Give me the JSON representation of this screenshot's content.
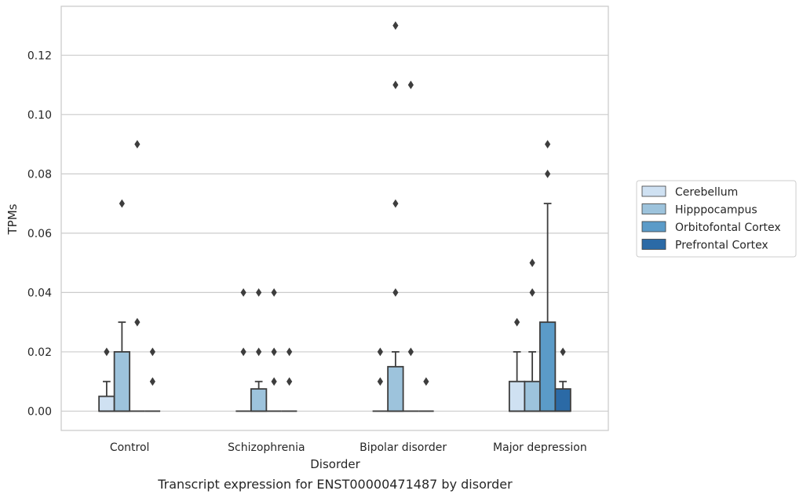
{
  "chart_data": {
    "type": "box",
    "caption": "Transcript expression for ENST00000471487 by disorder",
    "xlabel": "Disorder",
    "ylabel": "TPMs",
    "ylim": [
      -0.0065,
      0.1365
    ],
    "yticks": [
      "0.00",
      "0.02",
      "0.04",
      "0.06",
      "0.08",
      "0.10",
      "0.12"
    ],
    "grid": true,
    "legend_position": "right",
    "categories": [
      "Control",
      "Schizophrenia",
      "Bipolar disorder",
      "Major depression"
    ],
    "series": [
      {
        "name": "Cerebellum",
        "color": "#cfe1f2",
        "boxes": [
          {
            "q1": 0,
            "median": 0,
            "q3": 0.005,
            "whisker_low": 0,
            "whisker_high": 0.01,
            "outliers": [
              0.02
            ]
          },
          {
            "q1": 0,
            "median": 0,
            "q3": 0,
            "whisker_low": 0,
            "whisker_high": 0,
            "outliers": [
              0.02,
              0.04
            ]
          },
          {
            "q1": 0,
            "median": 0,
            "q3": 0,
            "whisker_low": 0,
            "whisker_high": 0,
            "outliers": [
              0.01,
              0.02
            ]
          },
          {
            "q1": 0,
            "median": 0,
            "q3": 0.01,
            "whisker_low": 0,
            "whisker_high": 0.02,
            "outliers": [
              0.03
            ]
          }
        ]
      },
      {
        "name": "Hipppocampus",
        "color": "#9dc3dc",
        "boxes": [
          {
            "q1": 0,
            "median": 0,
            "q3": 0.02,
            "whisker_low": 0,
            "whisker_high": 0.03,
            "outliers": [
              0.07
            ]
          },
          {
            "q1": 0,
            "median": 0,
            "q3": 0.0075,
            "whisker_low": 0,
            "whisker_high": 0.01,
            "outliers": [
              0.02,
              0.04
            ]
          },
          {
            "q1": 0,
            "median": 0,
            "q3": 0.015,
            "whisker_low": 0,
            "whisker_high": 0.02,
            "outliers": [
              0.04,
              0.07,
              0.11,
              0.13
            ]
          },
          {
            "q1": 0,
            "median": 0,
            "q3": 0.01,
            "whisker_low": 0,
            "whisker_high": 0.02,
            "outliers": [
              0.04,
              0.05
            ]
          }
        ]
      },
      {
        "name": "Orbitofontal Cortex",
        "color": "#5b9bc8",
        "boxes": [
          {
            "q1": 0,
            "median": 0,
            "q3": 0,
            "whisker_low": 0,
            "whisker_high": 0,
            "outliers": [
              0.03,
              0.09
            ]
          },
          {
            "q1": 0,
            "median": 0,
            "q3": 0,
            "whisker_low": 0,
            "whisker_high": 0,
            "outliers": [
              0.01,
              0.02,
              0.04
            ]
          },
          {
            "q1": 0,
            "median": 0,
            "q3": 0,
            "whisker_low": 0,
            "whisker_high": 0,
            "outliers": [
              0.02,
              0.11
            ]
          },
          {
            "q1": 0,
            "median": 0,
            "q3": 0.03,
            "whisker_low": 0,
            "whisker_high": 0.07,
            "outliers": [
              0.08,
              0.09
            ]
          }
        ]
      },
      {
        "name": "Prefrontal Cortex",
        "color": "#2b6aa6",
        "boxes": [
          {
            "q1": 0,
            "median": 0,
            "q3": 0,
            "whisker_low": 0,
            "whisker_high": 0,
            "outliers": [
              0.01,
              0.02
            ]
          },
          {
            "q1": 0,
            "median": 0,
            "q3": 0,
            "whisker_low": 0,
            "whisker_high": 0,
            "outliers": [
              0.01,
              0.02
            ]
          },
          {
            "q1": 0,
            "median": 0,
            "q3": 0,
            "whisker_low": 0,
            "whisker_high": 0,
            "outliers": [
              0.01
            ]
          },
          {
            "q1": 0,
            "median": 0,
            "q3": 0.0075,
            "whisker_low": 0,
            "whisker_high": 0.01,
            "outliers": [
              0.02
            ]
          }
        ]
      }
    ]
  }
}
